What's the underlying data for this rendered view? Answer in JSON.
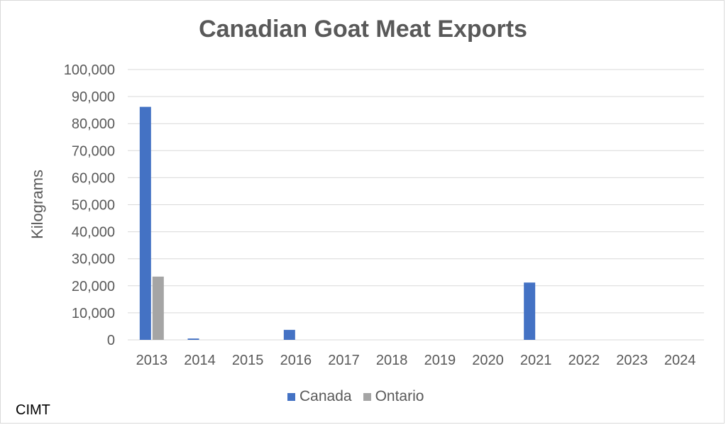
{
  "title": "Canadian Goat Meat Exports",
  "source_note": "CIMT",
  "chart_data": {
    "type": "bar",
    "title": "Canadian Goat Meat Exports",
    "xlabel": "",
    "ylabel": "Kilograms",
    "ylim": [
      0,
      100000
    ],
    "yticks": [
      "0",
      "10,000",
      "20,000",
      "30,000",
      "40,000",
      "50,000",
      "60,000",
      "70,000",
      "80,000",
      "90,000",
      "100,000"
    ],
    "categories": [
      "2013",
      "2014",
      "2015",
      "2016",
      "2017",
      "2018",
      "2019",
      "2020",
      "2021",
      "2022",
      "2023",
      "2024"
    ],
    "series": [
      {
        "name": "Canada",
        "color": "#4472c4",
        "values": [
          86200,
          500,
          0,
          3700,
          0,
          0,
          0,
          0,
          21200,
          0,
          0,
          0
        ]
      },
      {
        "name": "Ontario",
        "color": "#a5a5a5",
        "values": [
          23400,
          0,
          0,
          0,
          0,
          0,
          0,
          0,
          0,
          0,
          0,
          0
        ]
      }
    ],
    "grid": true,
    "legend": "bottom"
  }
}
